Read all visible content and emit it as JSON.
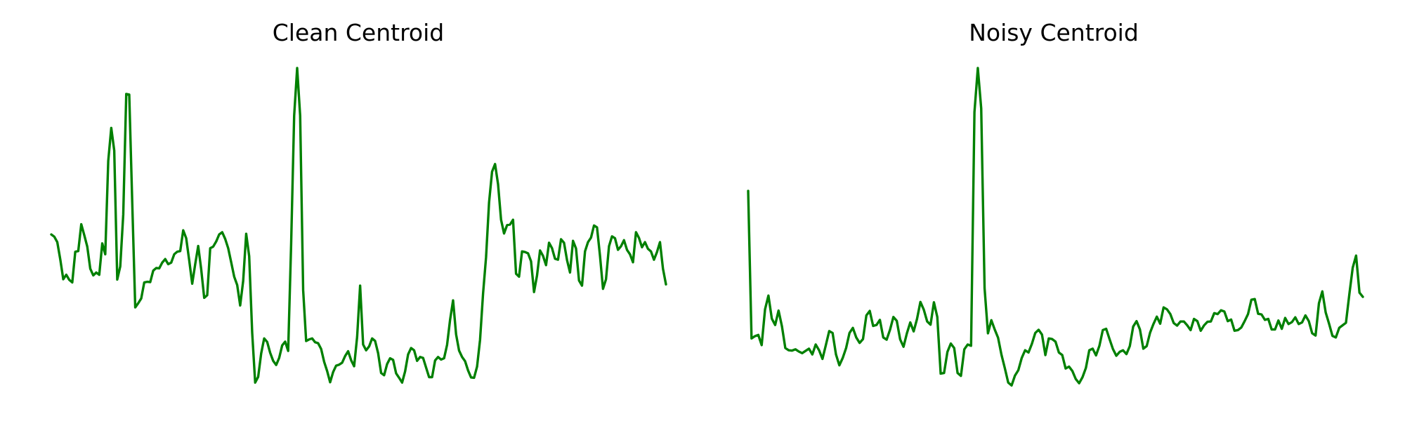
{
  "chart_data": [
    {
      "type": "line",
      "title": "Clean Centroid",
      "xlabel": "",
      "ylabel": "",
      "grid": false,
      "axes_visible": false,
      "legend": "none",
      "color": "#008000",
      "ylim": [
        0,
        1
      ],
      "series": [
        {
          "values": [
            0.48,
            0.473,
            0.456,
            0.402,
            0.34,
            0.354,
            0.338,
            0.33,
            0.426,
            0.428,
            0.512,
            0.478,
            0.442,
            0.373,
            0.352,
            0.361,
            0.354,
            0.452,
            0.418,
            0.71,
            0.813,
            0.742,
            0.339,
            0.38,
            0.542,
            0.919,
            0.917,
            0.58,
            0.252,
            0.265,
            0.28,
            0.33,
            0.332,
            0.331,
            0.367,
            0.375,
            0.374,
            0.392,
            0.403,
            0.387,
            0.392,
            0.418,
            0.426,
            0.428,
            0.493,
            0.468,
            0.399,
            0.326,
            0.387,
            0.444,
            0.371,
            0.282,
            0.29,
            0.437,
            0.442,
            0.458,
            0.48,
            0.487,
            0.466,
            0.437,
            0.393,
            0.348,
            0.322,
            0.258,
            0.335,
            0.482,
            0.412,
            0.173,
            0.017,
            0.035,
            0.108,
            0.155,
            0.144,
            0.11,
            0.085,
            0.072,
            0.094,
            0.133,
            0.145,
            0.116,
            0.452,
            0.851,
            1.0,
            0.851,
            0.306,
            0.147,
            0.152,
            0.155,
            0.143,
            0.14,
            0.122,
            0.082,
            0.053,
            0.018,
            0.05,
            0.07,
            0.073,
            0.079,
            0.1,
            0.115,
            0.087,
            0.068,
            0.16,
            0.32,
            0.136,
            0.118,
            0.13,
            0.155,
            0.147,
            0.109,
            0.047,
            0.04,
            0.075,
            0.093,
            0.088,
            0.046,
            0.032,
            0.017,
            0.052,
            0.105,
            0.125,
            0.118,
            0.085,
            0.097,
            0.094,
            0.064,
            0.034,
            0.034,
            0.086,
            0.097,
            0.089,
            0.093,
            0.135,
            0.213,
            0.274,
            0.168,
            0.117,
            0.097,
            0.084,
            0.055,
            0.033,
            0.032,
            0.067,
            0.151,
            0.295,
            0.409,
            0.58,
            0.676,
            0.7,
            0.637,
            0.526,
            0.483,
            0.509,
            0.511,
            0.526,
            0.357,
            0.348,
            0.427,
            0.425,
            0.421,
            0.396,
            0.3,
            0.352,
            0.43,
            0.413,
            0.384,
            0.454,
            0.437,
            0.404,
            0.401,
            0.465,
            0.454,
            0.4,
            0.361,
            0.46,
            0.436,
            0.336,
            0.32,
            0.427,
            0.456,
            0.47,
            0.508,
            0.502,
            0.413,
            0.31,
            0.34,
            0.443,
            0.474,
            0.468,
            0.432,
            0.443,
            0.462,
            0.432,
            0.418,
            0.393,
            0.487,
            0.469,
            0.44,
            0.456,
            0.435,
            0.427,
            0.401,
            0.425,
            0.456,
            0.373,
            0.324
          ]
        }
      ]
    },
    {
      "type": "line",
      "title": "Noisy Centroid",
      "xlabel": "",
      "ylabel": "",
      "grid": false,
      "axes_visible": false,
      "legend": "none",
      "color": "#008000",
      "ylim": [
        0,
        1
      ],
      "series": [
        {
          "values": [
            0.616,
            0.155,
            0.162,
            0.166,
            0.134,
            0.246,
            0.289,
            0.217,
            0.197,
            0.242,
            0.193,
            0.125,
            0.118,
            0.117,
            0.121,
            0.114,
            0.109,
            0.116,
            0.123,
            0.105,
            0.136,
            0.118,
            0.091,
            0.134,
            0.178,
            0.172,
            0.105,
            0.071,
            0.094,
            0.125,
            0.172,
            0.188,
            0.158,
            0.141,
            0.153,
            0.227,
            0.241,
            0.194,
            0.197,
            0.213,
            0.158,
            0.151,
            0.182,
            0.222,
            0.21,
            0.152,
            0.129,
            0.171,
            0.205,
            0.177,
            0.216,
            0.269,
            0.245,
            0.208,
            0.198,
            0.268,
            0.222,
            0.045,
            0.047,
            0.113,
            0.139,
            0.125,
            0.047,
            0.038,
            0.121,
            0.136,
            0.132,
            0.862,
            1.0,
            0.874,
            0.312,
            0.171,
            0.212,
            0.183,
            0.157,
            0.104,
            0.062,
            0.017,
            0.008,
            0.039,
            0.056,
            0.094,
            0.118,
            0.111,
            0.138,
            0.172,
            0.182,
            0.167,
            0.103,
            0.155,
            0.153,
            0.145,
            0.111,
            0.103,
            0.061,
            0.067,
            0.053,
            0.028,
            0.015,
            0.034,
            0.063,
            0.118,
            0.123,
            0.102,
            0.132,
            0.181,
            0.185,
            0.153,
            0.122,
            0.101,
            0.113,
            0.118,
            0.106,
            0.131,
            0.192,
            0.209,
            0.183,
            0.123,
            0.131,
            0.173,
            0.2,
            0.223,
            0.201,
            0.252,
            0.246,
            0.231,
            0.203,
            0.195,
            0.208,
            0.208,
            0.196,
            0.181,
            0.216,
            0.209,
            0.179,
            0.196,
            0.207,
            0.208,
            0.234,
            0.231,
            0.243,
            0.239,
            0.209,
            0.214,
            0.179,
            0.181,
            0.189,
            0.209,
            0.231,
            0.276,
            0.278,
            0.232,
            0.23,
            0.213,
            0.216,
            0.183,
            0.183,
            0.211,
            0.185,
            0.219,
            0.2,
            0.206,
            0.221,
            0.2,
            0.205,
            0.227,
            0.209,
            0.171,
            0.164,
            0.265,
            0.302,
            0.236,
            0.201,
            0.163,
            0.158,
            0.188,
            0.196,
            0.204,
            0.293,
            0.376,
            0.414,
            0.298,
            0.285
          ]
        }
      ]
    }
  ]
}
